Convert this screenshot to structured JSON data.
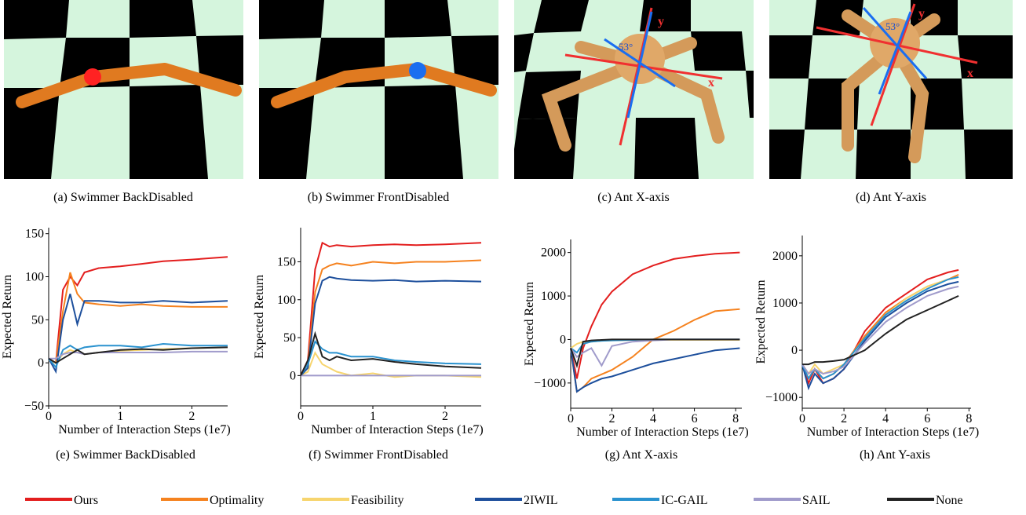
{
  "images": [
    {
      "caption": "(a) Swimmer BackDisabled"
    },
    {
      "caption": "(b) Swimmer FrontDisabled"
    },
    {
      "caption": "(c) Ant X-axis",
      "annotations": [
        "53°",
        "x",
        "y"
      ]
    },
    {
      "caption": "(d) Ant Y-axis",
      "annotations": [
        "53°",
        "x",
        "y"
      ]
    }
  ],
  "legend": [
    {
      "name": "Ours",
      "color": "#e31e1e"
    },
    {
      "name": "Optimality",
      "color": "#f5821f"
    },
    {
      "name": "Feasibility",
      "color": "#f7d56e"
    },
    {
      "name": "2IWIL",
      "color": "#1d4f9c"
    },
    {
      "name": "IC-GAIL",
      "color": "#2a92cf"
    },
    {
      "name": "SAIL",
      "color": "#a09bcb"
    },
    {
      "name": "None",
      "color": "#222222"
    }
  ],
  "chart_data": [
    {
      "type": "line",
      "caption": "(e) Swimmer BackDisabled",
      "x_label": "Number of Interaction Steps (1e7)",
      "y_label": "Expected Return",
      "x": [
        0,
        0.1,
        0.2,
        0.3,
        0.4,
        0.5,
        0.7,
        1.0,
        1.3,
        1.6,
        2.0,
        2.5
      ],
      "series": [
        {
          "values": [
            5,
            0,
            85,
            100,
            90,
            105,
            110,
            112,
            115,
            118,
            120,
            123
          ]
        },
        {
          "values": [
            5,
            0,
            60,
            105,
            80,
            70,
            68,
            66,
            68,
            66,
            65,
            65
          ]
        },
        {
          "values": [
            3,
            0,
            10,
            15,
            12,
            10,
            12,
            14,
            15,
            16,
            17,
            18
          ]
        },
        {
          "values": [
            5,
            -10,
            50,
            80,
            45,
            72,
            72,
            70,
            70,
            72,
            70,
            72
          ]
        },
        {
          "values": [
            5,
            -5,
            15,
            20,
            15,
            18,
            20,
            20,
            18,
            22,
            20,
            20
          ]
        },
        {
          "values": [
            5,
            5,
            10,
            12,
            12,
            10,
            12,
            12,
            12,
            12,
            13,
            13
          ]
        },
        {
          "values": [
            5,
            0,
            5,
            10,
            15,
            10,
            12,
            15,
            16,
            15,
            17,
            18
          ]
        }
      ],
      "xlim": [
        0,
        2.5
      ],
      "ylim": [
        -50,
        157
      ],
      "xticks": [
        0,
        1,
        2
      ],
      "yticks": [
        {
          "value": -50,
          "label": "−50"
        },
        0,
        50,
        100,
        150
      ]
    },
    {
      "type": "line",
      "caption": "(f) Swimmer FrontDisabled",
      "x_label": "Number of Interaction Steps (1e7)",
      "y_label": "Expected Return",
      "x": [
        0,
        0.1,
        0.2,
        0.3,
        0.4,
        0.5,
        0.7,
        1.0,
        1.3,
        1.6,
        2.0,
        2.5
      ],
      "series": [
        {
          "values": [
            0,
            20,
            140,
            175,
            170,
            172,
            170,
            172,
            173,
            172,
            173,
            175
          ]
        },
        {
          "values": [
            0,
            15,
            110,
            140,
            145,
            148,
            145,
            150,
            148,
            150,
            150,
            152
          ]
        },
        {
          "values": [
            0,
            5,
            30,
            15,
            10,
            5,
            0,
            3,
            -2,
            0,
            0,
            -2
          ]
        },
        {
          "values": [
            0,
            10,
            95,
            125,
            130,
            128,
            126,
            125,
            126,
            124,
            125,
            124
          ]
        },
        {
          "values": [
            0,
            15,
            45,
            35,
            30,
            30,
            25,
            25,
            20,
            18,
            16,
            15
          ]
        },
        {
          "values": [
            0,
            0,
            0,
            0,
            0,
            0,
            0,
            0,
            0,
            0,
            0,
            0
          ]
        },
        {
          "values": [
            0,
            20,
            55,
            25,
            20,
            25,
            20,
            22,
            18,
            15,
            12,
            10
          ]
        }
      ],
      "xlim": [
        0,
        2.5
      ],
      "ylim": [
        -40,
        195
      ],
      "xticks": [
        0,
        1,
        2
      ],
      "yticks": [
        0,
        50,
        100,
        150
      ]
    },
    {
      "type": "line",
      "caption": "(g) Ant X-axis",
      "x_label": "Number of Interaction Steps (1e7)",
      "y_label": "Expected Return",
      "x": [
        0,
        0.3,
        0.6,
        1,
        1.5,
        2,
        3,
        4,
        5,
        6,
        7,
        8.2
      ],
      "series": [
        {
          "values": [
            -200,
            -900,
            -200,
            300,
            800,
            1100,
            1500,
            1700,
            1850,
            1920,
            1970,
            2000
          ]
        },
        {
          "values": [
            -200,
            -1200,
            -1100,
            -900,
            -800,
            -700,
            -400,
            0,
            200,
            450,
            650,
            700
          ]
        },
        {
          "values": [
            -200,
            -100,
            -50,
            -50,
            -30,
            -20,
            -10,
            -10,
            -10,
            -10,
            -10,
            -10
          ]
        },
        {
          "values": [
            -200,
            -1200,
            -1100,
            -1000,
            -900,
            -850,
            -700,
            -550,
            -450,
            -350,
            -250,
            -200
          ]
        },
        {
          "values": [
            -200,
            -300,
            -100,
            -50,
            -30,
            -20,
            -10,
            0,
            0,
            0,
            0,
            0
          ]
        },
        {
          "values": [
            -200,
            -400,
            -300,
            -200,
            -600,
            -150,
            -50,
            -20,
            0,
            0,
            0,
            0
          ]
        },
        {
          "values": [
            -200,
            -600,
            -50,
            -20,
            -10,
            0,
            0,
            0,
            0,
            0,
            0,
            0
          ]
        }
      ],
      "xlim": [
        0,
        8.3
      ],
      "ylim": [
        -1580,
        2300
      ],
      "xticks": [
        0,
        2,
        4,
        6,
        8
      ],
      "yticks": [
        {
          "value": -1000,
          "label": "−1000"
        },
        0,
        1000,
        2000
      ]
    },
    {
      "type": "line",
      "caption": "(h) Ant Y-axis",
      "x_label": "Number of Interaction Steps (1e7)",
      "y_label": "Expected Return",
      "x": [
        0,
        0.3,
        0.6,
        1,
        1.5,
        2,
        3,
        4,
        5,
        6,
        7,
        7.5
      ],
      "series": [
        {
          "values": [
            -300,
            -700,
            -400,
            -700,
            -600,
            -400,
            400,
            900,
            1200,
            1500,
            1650,
            1700
          ]
        },
        {
          "values": [
            -300,
            -600,
            -400,
            -600,
            -500,
            -300,
            300,
            800,
            1100,
            1350,
            1500,
            1600
          ]
        },
        {
          "values": [
            -300,
            -500,
            -300,
            -500,
            -400,
            -300,
            250,
            750,
            1100,
            1350,
            1500,
            1550
          ]
        },
        {
          "values": [
            -300,
            -800,
            -500,
            -700,
            -600,
            -400,
            200,
            700,
            1000,
            1250,
            1400,
            1450
          ]
        },
        {
          "values": [
            -300,
            -600,
            -400,
            -600,
            -500,
            -300,
            250,
            750,
            1050,
            1300,
            1500,
            1550
          ]
        },
        {
          "values": [
            -300,
            -500,
            -400,
            -500,
            -450,
            -350,
            150,
            600,
            900,
            1150,
            1300,
            1350
          ]
        },
        {
          "values": [
            -300,
            -300,
            -250,
            -250,
            -230,
            -200,
            0,
            350,
            650,
            850,
            1050,
            1150
          ]
        }
      ],
      "xlim": [
        0,
        8.1
      ],
      "ylim": [
        -1230,
        2430
      ],
      "xticks": [
        0,
        2,
        4,
        6,
        8
      ],
      "yticks": [
        {
          "value": -1000,
          "label": "−1000"
        },
        0,
        1000,
        2000
      ]
    }
  ]
}
